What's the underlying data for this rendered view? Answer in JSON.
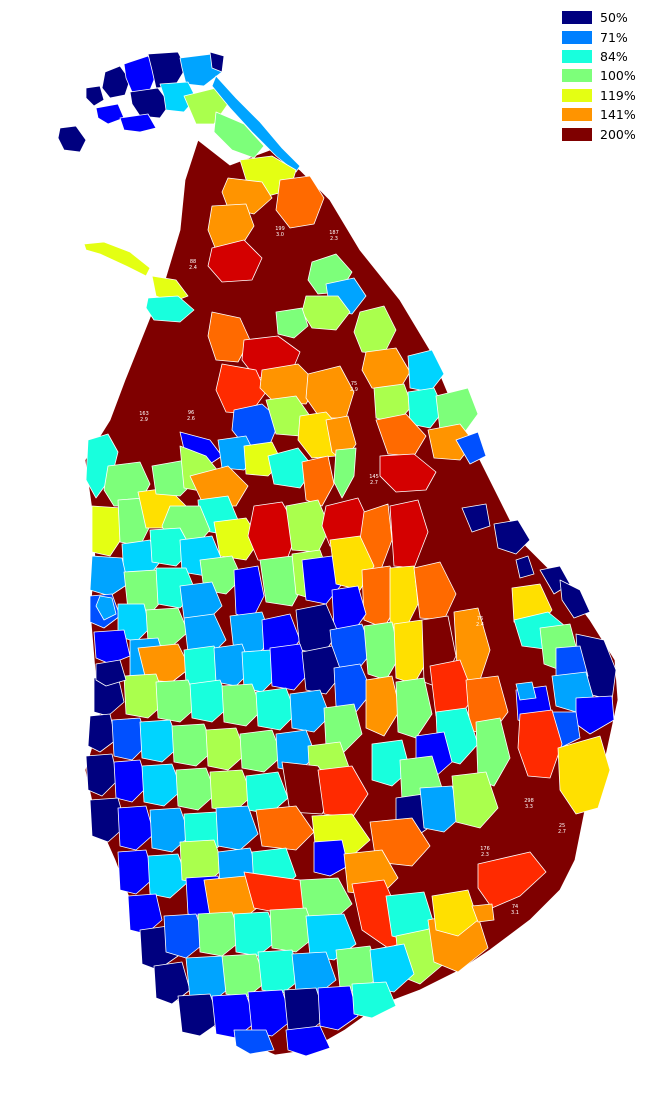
{
  "legend": {
    "items": [
      {
        "label": "50%",
        "color": "#00007f"
      },
      {
        "label": "71%",
        "color": "#0080ff"
      },
      {
        "label": "84%",
        "color": "#18ffdd"
      },
      {
        "label": "100%",
        "color": "#7dff7a"
      },
      {
        "label": "119%",
        "color": "#e4ff13"
      },
      {
        "label": "141%",
        "color": "#ff9400"
      },
      {
        "label": "200%",
        "color": "#7f0000"
      }
    ]
  },
  "palette": {
    "darkblue": "#00007f",
    "blue": "#0000ff",
    "midblue": "#0050ff",
    "lightblue": "#00a4ff",
    "cyan": "#18ffdd",
    "cyanblue": "#00d4ff",
    "green": "#7dff7a",
    "lime": "#aaff4d",
    "yellowgreen": "#e4ff13",
    "yellow": "#ffe000",
    "orange": "#ff9400",
    "darkorange": "#ff6a00",
    "red": "#ff2a00",
    "crimson": "#d40000",
    "darkred": "#7f0000",
    "border": "#ffffff"
  },
  "district_labels": [
    {
      "line1": "199",
      "line2": "3.0"
    },
    {
      "line1": "187",
      "line2": "2.3"
    },
    {
      "line1": "88",
      "line2": "2.4"
    },
    {
      "line1": "75",
      "line2": "2.9"
    },
    {
      "line1": "163",
      "line2": "2.9"
    },
    {
      "line1": "96",
      "line2": "2.6"
    },
    {
      "line1": "145",
      "line2": "2.7"
    },
    {
      "line1": "76",
      "line2": "2.4"
    },
    {
      "line1": "298",
      "line2": "3.3"
    },
    {
      "line1": "25",
      "line2": "2.7"
    },
    {
      "line1": "176",
      "line2": "2.3"
    },
    {
      "line1": "74",
      "line2": "3.1"
    }
  ]
}
